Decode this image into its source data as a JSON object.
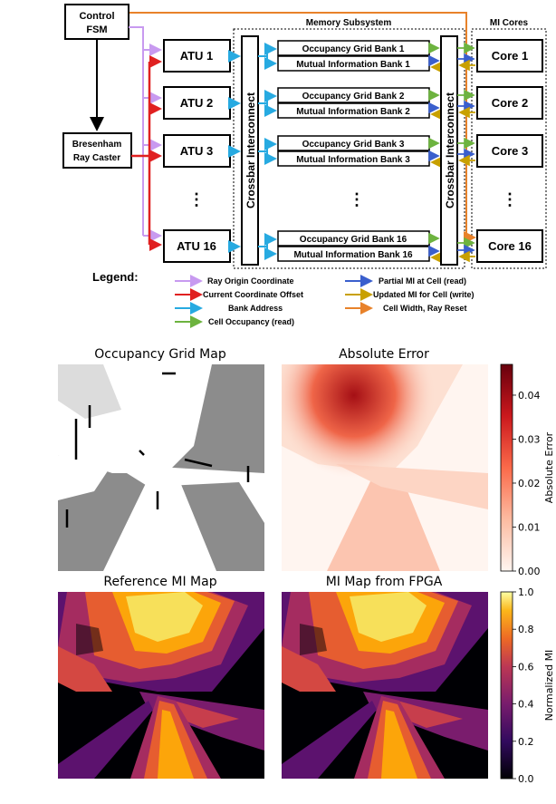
{
  "diagram": {
    "control_fsm": "Control\nFSM",
    "bresenham": "Bresenham\nRay Caster",
    "memory_subsystem_label": "Memory Subsystem",
    "mi_cores_label": "MI Cores",
    "crossbar_label": "Crossbar Interconnect",
    "atus": [
      "ATU 1",
      "ATU 2",
      "ATU 3",
      "ATU 16"
    ],
    "dots": "⋮",
    "bank_pairs": [
      {
        "occ": "Occupancy Grid Bank 1",
        "mi": "Mutual Information Bank 1"
      },
      {
        "occ": "Occupancy Grid Bank 2",
        "mi": "Mutual Information Bank 2"
      },
      {
        "occ": "Occupancy Grid Bank 3",
        "mi": "Mutual Information Bank 3"
      },
      {
        "occ": "Occupancy Grid Bank 16",
        "mi": "Mutual Information Bank 16"
      }
    ],
    "cores": [
      "Core 1",
      "Core 2",
      "Core 3",
      "Core 16"
    ],
    "legend": {
      "title": "Legend:",
      "items": [
        {
          "label": "Ray Origin Coordinate",
          "color": "#c89af0"
        },
        {
          "label": "Current Coordinate Offset",
          "color": "#e02020"
        },
        {
          "label": "Bank Address",
          "color": "#27aae1"
        },
        {
          "label": "Cell Occupancy (read)",
          "color": "#6db33f"
        },
        {
          "label": "Partial MI at Cell (read)",
          "color": "#3a5fcd"
        },
        {
          "label": "Updated MI for Cell (write)",
          "color": "#c8a000"
        },
        {
          "label": "Cell Width, Ray Reset",
          "color": "#e8822a"
        }
      ]
    }
  },
  "plots": {
    "titles": [
      "Occupancy Grid Map",
      "Absolute Error",
      "Reference MI Map",
      "MI Map from FPGA"
    ],
    "error_colorbar": {
      "label": "Absolute Error",
      "ticks": [
        "0.00",
        "0.01",
        "0.02",
        "0.03",
        "0.04"
      ],
      "range": [
        0,
        0.047
      ]
    },
    "mi_colorbar": {
      "label": "Normalized MI",
      "ticks": [
        "0.0",
        "0.2",
        "0.4",
        "0.6",
        "0.8",
        "1.0"
      ],
      "range": [
        0,
        1.0
      ]
    }
  }
}
